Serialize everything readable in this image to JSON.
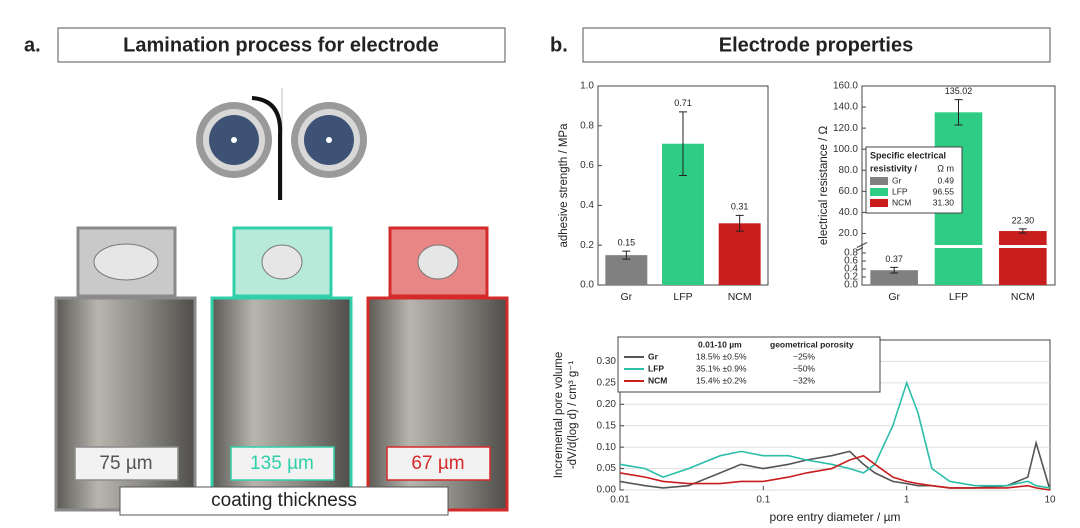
{
  "panel_a": {
    "label": "a.",
    "title": "Lamination process for electrode",
    "samples": [
      {
        "thickness": "75 µm",
        "color": "#8a8a8a"
      },
      {
        "thickness": "135 µm",
        "color": "#2fd0a9"
      },
      {
        "thickness": "67 µm",
        "color": "#d42a2a"
      }
    ],
    "caption": "coating thickness"
  },
  "panel_b": {
    "label": "b.",
    "title": "Electrode properties"
  },
  "chart_data": [
    {
      "type": "bar",
      "ylabel": [
        "adhesive strength / MPa"
      ],
      "categories": [
        "Gr",
        "LFP",
        "NCM"
      ],
      "values": [
        0.15,
        0.71,
        0.31
      ],
      "errors": [
        0.02,
        0.16,
        0.04
      ],
      "colors": [
        "#808080",
        "#2ecc85",
        "#c81e1e"
      ],
      "ylim": [
        0,
        1.0
      ],
      "yticks": [
        {
          "value": 0,
          "label": "0.0"
        },
        {
          "value": 0.2,
          "label": "0.2"
        },
        {
          "value": 0.4,
          "label": "0.4"
        },
        {
          "value": 0.6,
          "label": "0.6"
        },
        {
          "value": 0.8,
          "label": "0.8"
        },
        {
          "value": 1.0,
          "label": "1.0"
        }
      ]
    },
    {
      "type": "bar",
      "ylabel": [
        "electrical resistance / Ω"
      ],
      "categories": [
        "Gr",
        "LFP",
        "NCM"
      ],
      "values": [
        0.37,
        135.02,
        22.3
      ],
      "value_labels": [
        "0.37",
        "135.02",
        "22.30"
      ],
      "errors": [
        0.07,
        12,
        2
      ],
      "colors": [
        "#808080",
        "#2ecc85",
        "#c81e1e"
      ],
      "ylim": [
        0,
        160
      ],
      "ybreak": [
        0.9,
        10
      ],
      "yticks": [
        {
          "value": 0,
          "label": "0.0"
        },
        {
          "value": 0.2,
          "label": "0.2"
        },
        {
          "value": 0.4,
          "label": "0.4"
        },
        {
          "value": 0.6,
          "label": "0.6"
        },
        {
          "value": 0.8,
          "label": "0.8"
        },
        {
          "value": 20,
          "label": "20.0"
        },
        {
          "value": 40,
          "label": "40.0"
        },
        {
          "value": 60,
          "label": "60.0"
        },
        {
          "value": 80,
          "label": "80.0"
        },
        {
          "value": 100,
          "label": "100.0"
        },
        {
          "value": 120,
          "label": "120.0"
        },
        {
          "value": 140,
          "label": "140.0"
        },
        {
          "value": 160,
          "label": "160.0"
        }
      ],
      "legend": {
        "title": "Specific electrical",
        "subtitle": "resistivity /",
        "unit": "Ω m",
        "values": [
          "0.49",
          "96.55",
          "31.30"
        ]
      }
    },
    {
      "type": "line",
      "ylabel": [
        "Incremental pore volume",
        "-dV/d(log d) / cm³ g⁻¹"
      ],
      "xlabel": "pore entry diameter / µm",
      "xscale": "log",
      "grid": true,
      "x": [
        0.01,
        0.015,
        0.02,
        0.03,
        0.05,
        0.07,
        0.1,
        0.15,
        0.2,
        0.3,
        0.4,
        0.5,
        0.6,
        0.8,
        1,
        1.2,
        1.5,
        2,
        3,
        5,
        7,
        8,
        10
      ],
      "series": [
        {
          "name": "Gr",
          "color": "#555555",
          "values": [
            0.02,
            0.01,
            0.005,
            0.01,
            0.04,
            0.06,
            0.05,
            0.06,
            0.07,
            0.08,
            0.09,
            0.06,
            0.04,
            0.02,
            0.015,
            0.01,
            0.01,
            0.005,
            0.005,
            0.01,
            0.03,
            0.11,
            0
          ]
        },
        {
          "name": "LFP",
          "color": "#2bbfa8",
          "values": [
            0.06,
            0.05,
            0.03,
            0.05,
            0.08,
            0.09,
            0.08,
            0.08,
            0.07,
            0.06,
            0.05,
            0.04,
            0.06,
            0.15,
            0.25,
            0.18,
            0.05,
            0.02,
            0.01,
            0.01,
            0.02,
            0.01,
            0.005
          ]
        },
        {
          "name": "NCM",
          "color": "#c81e1e",
          "values": [
            0.04,
            0.03,
            0.02,
            0.015,
            0.015,
            0.02,
            0.02,
            0.03,
            0.04,
            0.05,
            0.07,
            0.08,
            0.06,
            0.03,
            0.02,
            0.015,
            0.01,
            0.005,
            0.005,
            0.005,
            0.01,
            0.005,
            0
          ]
        }
      ],
      "xlim": [
        0.01,
        10
      ],
      "xticks": [
        0.01,
        0.1,
        1,
        10
      ],
      "ylim": [
        0,
        0.35
      ],
      "yticks": [
        {
          "value": 0,
          "label": "0.00"
        },
        {
          "value": 0.05,
          "label": "0.05"
        },
        {
          "value": 0.1,
          "label": "0.10"
        },
        {
          "value": 0.15,
          "label": "0.15"
        },
        {
          "value": 0.2,
          "label": "0.20"
        },
        {
          "value": 0.25,
          "label": "0.25"
        },
        {
          "value": 0.3,
          "label": "0.30"
        }
      ],
      "legend_table": {
        "headers": [
          "0.01-10 µm",
          "geometrical porosity"
        ],
        "rows": [
          [
            "18.5% ±0.5%",
            "~25%"
          ],
          [
            "35.1% ±0.9%",
            "~50%"
          ],
          [
            "15.4% ±0.2%",
            "~32%"
          ]
        ]
      }
    }
  ]
}
